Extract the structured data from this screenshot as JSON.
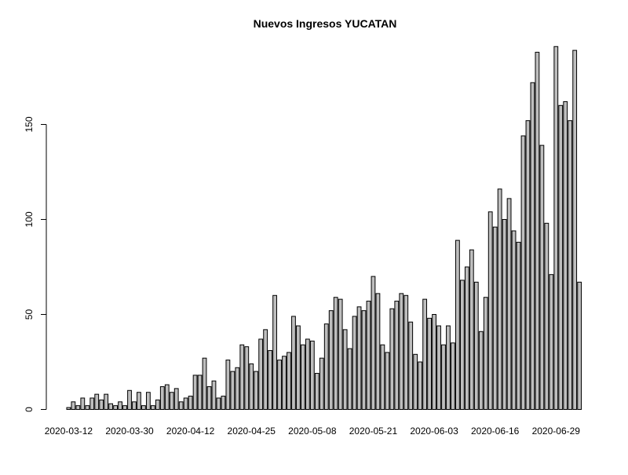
{
  "chart_data": {
    "type": "bar",
    "title": "Nuevos Ingresos YUCATAN",
    "xlabel": "",
    "ylabel": "",
    "ylim": [
      0,
      190
    ],
    "yticks": [
      0,
      50,
      100,
      150
    ],
    "xtick_labels": [
      "2020-03-12",
      "2020-03-30",
      "2020-04-12",
      "2020-04-25",
      "2020-05-08",
      "2020-05-21",
      "2020-06-03",
      "2020-06-16",
      "2020-06-29"
    ],
    "xtick_indices": [
      0,
      13,
      26,
      39,
      52,
      65,
      78,
      91,
      104
    ],
    "bar_fill": "#bebebe",
    "bar_stroke": "#000000",
    "grid": false,
    "values": [
      1,
      4,
      2,
      6,
      2,
      6,
      8,
      5,
      8,
      3,
      2,
      4,
      2,
      10,
      4,
      9,
      2,
      9,
      2,
      5,
      12,
      13,
      9,
      11,
      4,
      6,
      7,
      18,
      18,
      27,
      12,
      15,
      6,
      7,
      26,
      20,
      22,
      34,
      33,
      24,
      20,
      37,
      42,
      31,
      60,
      26,
      28,
      30,
      49,
      44,
      34,
      37,
      36,
      19,
      27,
      45,
      52,
      59,
      58,
      42,
      32,
      49,
      54,
      52,
      57,
      70,
      61,
      34,
      30,
      53,
      57,
      61,
      60,
      46,
      29,
      25,
      58,
      48,
      50,
      44,
      34,
      44,
      35,
      89,
      68,
      75,
      84,
      67,
      41,
      59,
      104,
      96,
      116,
      100,
      111,
      94,
      88,
      144,
      152,
      172,
      188,
      139,
      98,
      71,
      191,
      160,
      162,
      152,
      189,
      67
    ]
  }
}
